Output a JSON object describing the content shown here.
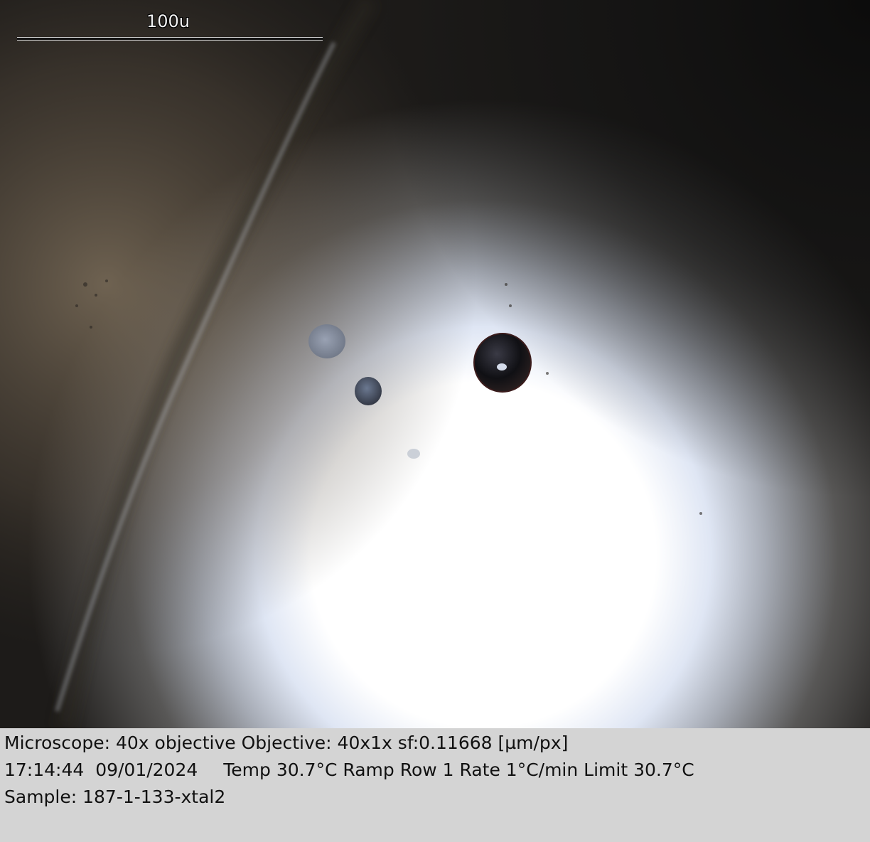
{
  "scale_bar": {
    "label": "100u"
  },
  "info": {
    "microscope": "Microscope: 40x objective Objective: 40x1x sf:0.11668 [µm/px]",
    "time": "17:14:44",
    "date": "09/01/2024",
    "temperature_status": "Temp 30.7°C Ramp Row 1 Rate 1°C/min Limit 30.7°C",
    "sample": "Sample: 187-1-133-xtal2"
  },
  "colors": {
    "panel_background": "#d4d4d4",
    "text": "#111111",
    "illumination_center": "#ffffff",
    "background_dark": "#1f1c18"
  }
}
